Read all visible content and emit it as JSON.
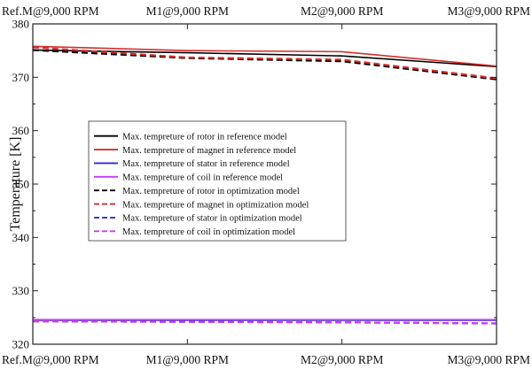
{
  "chart_data": {
    "type": "line",
    "title": "",
    "xlabel": "",
    "ylabel": "Temperature [K]",
    "categories": [
      "Ref.M@9,000 RPM",
      "M1@9,000 RPM",
      "M2@9,000 RPM",
      "M3@9,000 RPM"
    ],
    "ylim": [
      320,
      380
    ],
    "yticks": [
      320,
      330,
      340,
      350,
      360,
      370,
      380
    ],
    "grid": false,
    "legend_position": "center-left",
    "series": [
      {
        "name": "Max. tempreture of rotor in reference model",
        "color": "#000000",
        "dash": "solid",
        "values": [
          375.1,
          374.6,
          374.0,
          372.0
        ]
      },
      {
        "name": "Max. tempreture of magnet in reference model",
        "color": "#d62c2c",
        "dash": "solid",
        "values": [
          375.8,
          375.0,
          374.8,
          372.1
        ]
      },
      {
        "name": "Max. tempreture of stator in reference model",
        "color": "#2b2bd0",
        "dash": "solid",
        "values": [
          324.5,
          324.5,
          324.5,
          324.5
        ]
      },
      {
        "name": "Max. tempreture of coil in reference model",
        "color": "#c83cf0",
        "dash": "solid",
        "values": [
          324.6,
          324.6,
          324.6,
          324.6
        ]
      },
      {
        "name": "Max. tempreture of rotor in optimization model",
        "color": "#000000",
        "dash": "dashed",
        "values": [
          375.1,
          373.6,
          373.0,
          369.6
        ]
      },
      {
        "name": "Max. tempreture of magnet in optimization model",
        "color": "#d62c2c",
        "dash": "dashed",
        "values": [
          375.6,
          373.7,
          373.3,
          369.8
        ]
      },
      {
        "name": "Max. tempreture of stator in optimization model",
        "color": "#2b2bd0",
        "dash": "dashed",
        "values": [
          324.3,
          324.2,
          324.1,
          323.9
        ]
      },
      {
        "name": "Max. tempreture of coil in optimization model",
        "color": "#c83cf0",
        "dash": "dashed",
        "values": [
          324.3,
          324.2,
          324.1,
          323.9
        ]
      }
    ]
  }
}
